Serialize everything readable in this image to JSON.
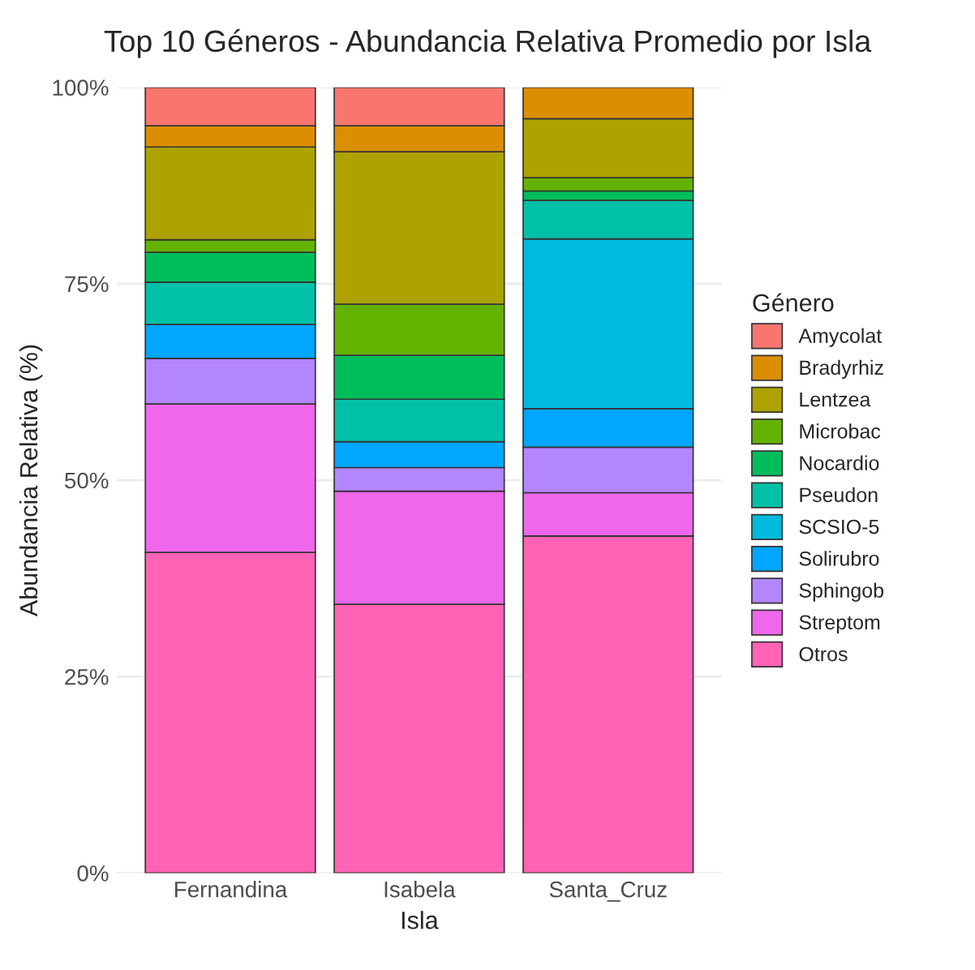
{
  "chart_data": {
    "type": "bar",
    "stacked": true,
    "title": "Top 10 Géneros - Abundancia Relativa Promedio por Isla",
    "xlabel": "Isla",
    "ylabel": "Abundancia Relativa (%)",
    "legend_title": "Género",
    "legend": "right",
    "grid": true,
    "categories": [
      "Fernandina",
      "Isabela",
      "Santa_Cruz"
    ],
    "ylim": [
      0,
      100
    ],
    "yticks": [
      {
        "value": 0,
        "label": "0%"
      },
      {
        "value": 25,
        "label": "25%"
      },
      {
        "value": 50,
        "label": "50%"
      },
      {
        "value": 75,
        "label": "75%"
      },
      {
        "value": 100,
        "label": "100%"
      }
    ],
    "series": [
      {
        "name": "Otros",
        "color": "#ff63b6",
        "values": [
          40.8,
          34.2,
          42.9
        ]
      },
      {
        "name": "Streptom",
        "color": "#ef67eb",
        "values": [
          18.9,
          14.4,
          5.5
        ]
      },
      {
        "name": "Sphingob",
        "color": "#b385ff",
        "values": [
          5.8,
          3.0,
          5.8
        ]
      },
      {
        "name": "Solirubro",
        "color": "#00a6ff",
        "values": [
          4.3,
          3.3,
          4.9
        ]
      },
      {
        "name": "SCSIO-5",
        "color": "#00bade",
        "values": [
          null,
          null,
          21.6
        ]
      },
      {
        "name": "Pseudon",
        "color": "#00c1a7",
        "values": [
          5.4,
          5.4,
          4.9
        ]
      },
      {
        "name": "Nocardio",
        "color": "#00bd5c",
        "values": [
          3.8,
          5.6,
          1.2
        ]
      },
      {
        "name": "Microbac",
        "color": "#64b200",
        "values": [
          1.6,
          6.5,
          1.7
        ]
      },
      {
        "name": "Lentzea",
        "color": "#aea200",
        "values": [
          11.8,
          19.4,
          7.5
        ]
      },
      {
        "name": "Bradyrhiz",
        "color": "#db8e00",
        "values": [
          2.7,
          3.3,
          4.0
        ]
      },
      {
        "name": "Amycolat",
        "color": "#f8766d",
        "values": [
          4.9,
          4.9,
          null
        ]
      }
    ]
  }
}
